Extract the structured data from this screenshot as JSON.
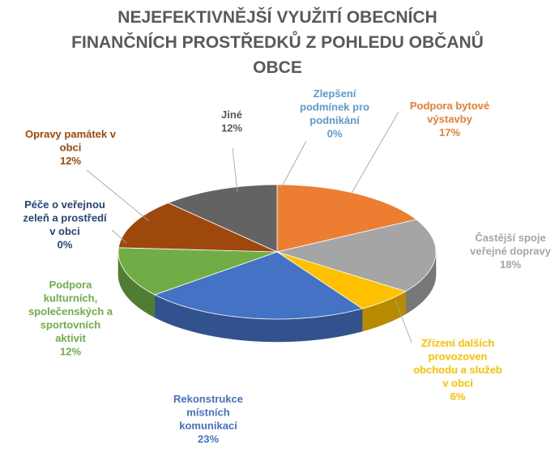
{
  "chart_data": {
    "type": "pie",
    "title": [
      "NEJEFEKTIVNĚJŠÍ VYUŽITÍ OBECNÍCH",
      "FINANČNÍCH PROSTŘEDKŮ Z POHLEDU OBČANŮ",
      "OBCE"
    ],
    "unit": "%",
    "slices": [
      {
        "label": [
          "Zlepšení",
          "podmínek pro",
          "podnikání"
        ],
        "value": 0,
        "value_label": "0%",
        "color": "#5B9BD5",
        "label_color": "#5B9BD5"
      },
      {
        "label": [
          "Podpora bytové",
          "výstavby"
        ],
        "value": 17,
        "value_label": "17%",
        "color": "#ED7D31",
        "label_color": "#ED7D31"
      },
      {
        "label": [
          "Častější spoje",
          "veřejné dopravy"
        ],
        "value": 18,
        "value_label": "18%",
        "color": "#A5A5A5",
        "label_color": "#A5A5A5"
      },
      {
        "label": [
          "Zřízení dalších",
          "provozoven",
          "obchodu a služeb",
          "v obci"
        ],
        "value": 6,
        "value_label": "6%",
        "color": "#FFC000",
        "label_color": "#FFC000"
      },
      {
        "label": [
          "Rekonstrukce",
          "místních",
          "komunikací"
        ],
        "value": 23,
        "value_label": "23%",
        "color": "#4472C4",
        "label_color": "#4472C4"
      },
      {
        "label": [
          "Podpora",
          "kulturních,",
          "společenských a",
          "sportovních",
          "aktivit"
        ],
        "value": 12,
        "value_label": "12%",
        "color": "#70AD47",
        "label_color": "#70AD47"
      },
      {
        "label": [
          "Péče o veřejnou",
          "zeleň a prostředí",
          "v obci"
        ],
        "value": 0,
        "value_label": "0%",
        "color": "#264478",
        "label_color": "#264478"
      },
      {
        "label": [
          "Opravy památek v",
          "obci"
        ],
        "value": 12,
        "value_label": "12%",
        "color": "#9E480E",
        "label_color": "#9E480E"
      },
      {
        "label": [
          "Jiné"
        ],
        "value": 12,
        "value_label": "12%",
        "color": "#636363",
        "label_color": "#595959"
      }
    ],
    "legend": "none",
    "style": "3d-pie"
  }
}
